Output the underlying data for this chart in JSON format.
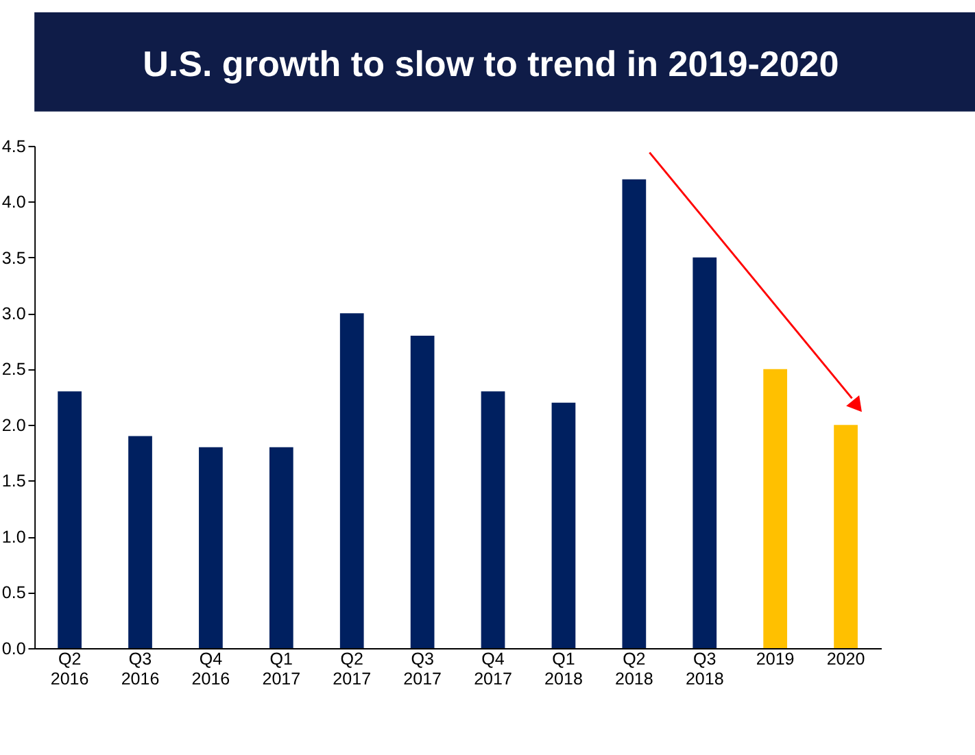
{
  "chart_data": {
    "type": "bar",
    "title": "U.S. growth to slow to trend in 2019-2020",
    "categories": [
      "Q2 2016",
      "Q3 2016",
      "Q4 2016",
      "Q1 2017",
      "Q2 2017",
      "Q3 2017",
      "Q4 2017",
      "Q1 2018",
      "Q2 2018",
      "Q3 2018",
      "2019",
      "2020"
    ],
    "values": [
      2.3,
      1.9,
      1.8,
      1.8,
      3.0,
      2.8,
      2.3,
      2.2,
      4.2,
      3.5,
      2.5,
      2.0
    ],
    "colors": [
      "#002060",
      "#002060",
      "#002060",
      "#002060",
      "#002060",
      "#002060",
      "#002060",
      "#002060",
      "#002060",
      "#002060",
      "#ffc000",
      "#ffc000"
    ],
    "ylim": [
      0,
      4.5
    ],
    "yticks": [
      {
        "value": 0,
        "label": "0.0"
      },
      0.5,
      {
        "value": 1,
        "label": "1.0"
      },
      1.5,
      {
        "value": 2,
        "label": "2.0"
      },
      2.5,
      {
        "value": 3,
        "label": "3.0"
      },
      3.5,
      {
        "value": 4,
        "label": "4.0"
      },
      4.5
    ],
    "grid": false,
    "legend": false
  }
}
